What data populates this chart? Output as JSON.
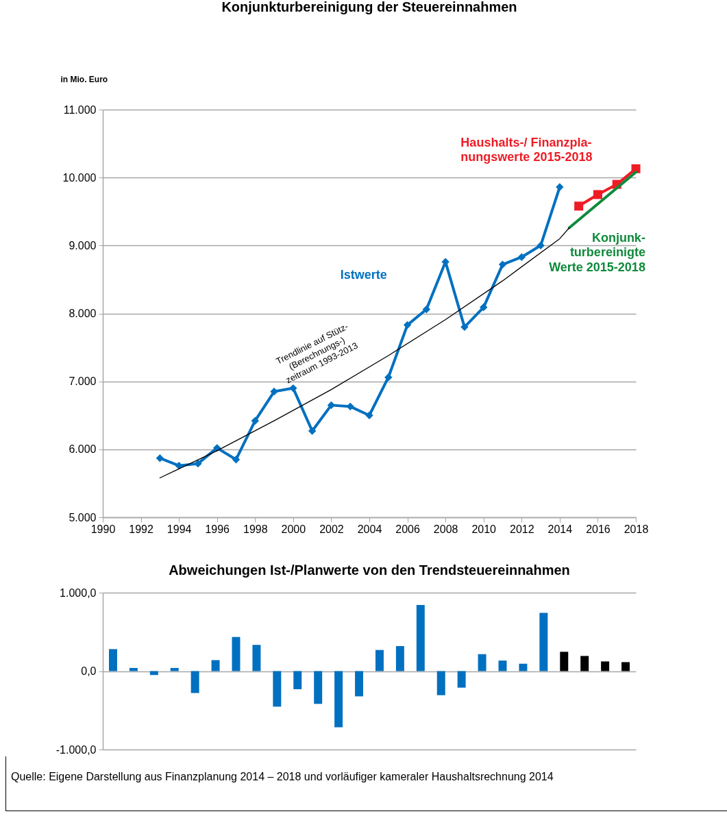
{
  "chart_data": [
    {
      "type": "line",
      "title": "Konjunkturbereinigung der Steuereinnahmen",
      "ylabel": "in Mio. Euro",
      "xlim": [
        1990,
        2018
      ],
      "xticks": [
        1990,
        1992,
        1994,
        1996,
        1998,
        2000,
        2002,
        2004,
        2006,
        2008,
        2010,
        2012,
        2014,
        2016,
        2018
      ],
      "ylim": [
        5000,
        11000
      ],
      "yticks": [
        {
          "value": 5000,
          "label": "5.000"
        },
        {
          "value": 6000,
          "label": "6.000"
        },
        {
          "value": 7000,
          "label": "7.000"
        },
        {
          "value": 8000,
          "label": "8.000"
        },
        {
          "value": 9000,
          "label": "9.000"
        },
        {
          "value": 10000,
          "label": "10.000"
        },
        {
          "value": 11000,
          "label": "11.000"
        }
      ],
      "grid": "y",
      "series": [
        {
          "name": "Istwerte",
          "color": "#0070c0",
          "marker": "diamond",
          "x": [
            1993,
            1994,
            1995,
            1996,
            1997,
            1998,
            1999,
            2000,
            2001,
            2002,
            2003,
            2004,
            2005,
            2006,
            2007,
            2008,
            2009,
            2010,
            2011,
            2012,
            2013,
            2014
          ],
          "values": [
            5870,
            5760,
            5790,
            6020,
            5850,
            6420,
            6850,
            6900,
            6270,
            6650,
            6630,
            6500,
            7060,
            7830,
            8060,
            8760,
            7800,
            8090,
            8720,
            8830,
            9000,
            9860
          ]
        },
        {
          "name": "Haushalts-/ Finanzpla-\nnungswerte 2015-2018",
          "color": "#ee1c25",
          "marker": "square",
          "x": [
            2015,
            2016,
            2017,
            2018
          ],
          "values": [
            9580,
            9750,
            9900,
            10130
          ]
        },
        {
          "name": "Konjunk-\nturbereinigte\nWerte 2015-2018",
          "color": "#0f8a3c",
          "marker": "none",
          "x": [
            2014.5,
            2018
          ],
          "values": [
            9260,
            10080
          ]
        },
        {
          "name": "Trendlinie auf Stütz-\n(Berechnungs-)\nzeitraum 1993-2013",
          "color": "#000000",
          "marker": "none",
          "x": [
            1993,
            1996,
            1999,
            2002,
            2005,
            2008,
            2011,
            2014,
            2014.5
          ],
          "values": [
            5580,
            5980,
            6420,
            6880,
            7380,
            7910,
            8480,
            9100,
            9260
          ]
        }
      ]
    },
    {
      "type": "bar",
      "title": "Abweichungen Ist-/Planwerte von den Trendsteuereinnahmen",
      "categories": [
        null,
        null,
        null,
        null,
        null,
        null,
        null,
        null,
        null,
        null,
        null,
        null,
        null,
        null,
        null,
        null,
        null,
        null,
        null,
        null,
        null,
        null,
        null,
        null,
        null,
        null
      ],
      "values": [
        280,
        40,
        -50,
        40,
        -280,
        140,
        435,
        333,
        -453,
        -231,
        -418,
        -716,
        -322,
        269,
        319,
        842,
        -307,
        -211,
        216,
        134,
        94,
        743,
        246,
        193,
        123,
        114
      ],
      "colors": [
        "#0070c0",
        "#0070c0",
        "#0070c0",
        "#0070c0",
        "#0070c0",
        "#0070c0",
        "#0070c0",
        "#0070c0",
        "#0070c0",
        "#0070c0",
        "#0070c0",
        "#0070c0",
        "#0070c0",
        "#0070c0",
        "#0070c0",
        "#0070c0",
        "#0070c0",
        "#0070c0",
        "#0070c0",
        "#0070c0",
        "#0070c0",
        "#0070c0",
        "#000000",
        "#000000",
        "#000000",
        "#000000"
      ],
      "ylim": [
        -1000,
        1000
      ],
      "yticks": [
        {
          "value": -1000,
          "label": "-1.000,0"
        },
        {
          "value": 0,
          "label": "0,0"
        },
        {
          "value": 1000,
          "label": "1.000,0"
        }
      ],
      "grid": "y",
      "tick_labels": "y",
      "annotations": [
        "Quelle: Eigene Darstellung aus Finanzplanung 2014 – 2018 und vorläufiger kameraler Haushaltsrechnung 2014"
      ]
    }
  ]
}
